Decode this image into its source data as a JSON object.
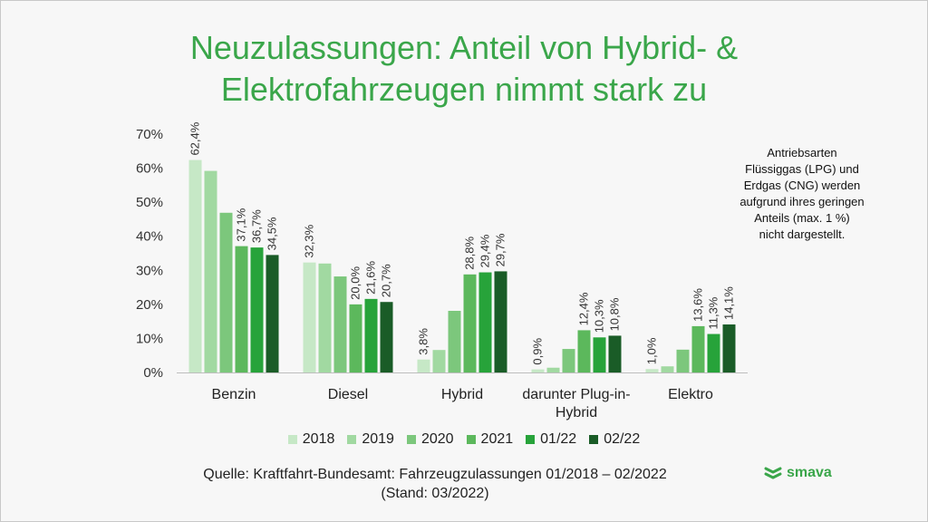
{
  "title_lines": [
    "Neuzulassungen: Anteil von Hybrid- &",
    "Elektrofahrzeugen nimmt stark zu"
  ],
  "note_lines": [
    "Antriebsarten",
    "Flüssiggas (LPG) und",
    "Erdgas (CNG) werden",
    "aufgrund ihres geringen",
    "Anteils (max. 1 %)",
    "nicht dargestellt."
  ],
  "source_lines": [
    "Quelle: Kraftfahrt-Bundesamt: Fahrzeugzulassungen 01/2018 – 02/2022",
    "(Stand: 03/2022)"
  ],
  "logo_text": "smava",
  "colors": {
    "title": "#3aa64a",
    "series": [
      "#c6e8c6",
      "#a1d9a1",
      "#7cc77c",
      "#5cb85c",
      "#27a33a",
      "#1a5c27"
    ]
  },
  "chart_data": {
    "type": "bar",
    "categories": [
      [
        "Benzin"
      ],
      [
        "Diesel"
      ],
      [
        "Hybrid"
      ],
      [
        "darunter Plug-in-",
        "Hybrid"
      ],
      [
        "Elektro"
      ]
    ],
    "series": [
      {
        "name": "2018",
        "values": [
          62.4,
          32.3,
          3.8,
          0.9,
          1.0
        ],
        "labels": [
          "62,4%",
          "32,3%",
          "3,8%",
          "0,9%",
          "1,0%"
        ]
      },
      {
        "name": "2019",
        "values": [
          59.2,
          32.0,
          6.6,
          1.4,
          1.8
        ],
        "labels": [
          null,
          null,
          null,
          null,
          null
        ]
      },
      {
        "name": "2020",
        "values": [
          46.9,
          28.2,
          18.1,
          6.9,
          6.7
        ],
        "labels": [
          null,
          null,
          null,
          null,
          null
        ]
      },
      {
        "name": "2021",
        "values": [
          37.1,
          20.0,
          28.8,
          12.4,
          13.6
        ],
        "labels": [
          "37,1%",
          "20,0%",
          "28,8%",
          "12,4%",
          "13,6%"
        ]
      },
      {
        "name": "01/22",
        "values": [
          36.7,
          21.6,
          29.4,
          10.3,
          11.3
        ],
        "labels": [
          "36,7%",
          "21,6%",
          "29,4%",
          "10,3%",
          "11,3%"
        ]
      },
      {
        "name": "02/22",
        "values": [
          34.5,
          20.7,
          29.7,
          10.8,
          14.1
        ],
        "labels": [
          "34,5%",
          "20,7%",
          "29,7%",
          "10,8%",
          "14,1%"
        ]
      }
    ],
    "ylim": [
      0,
      70
    ],
    "yticks": [
      "0%",
      "10%",
      "20%",
      "30%",
      "40%",
      "50%",
      "60%",
      "70%"
    ],
    "grid": false,
    "legend_position": "bottom"
  }
}
